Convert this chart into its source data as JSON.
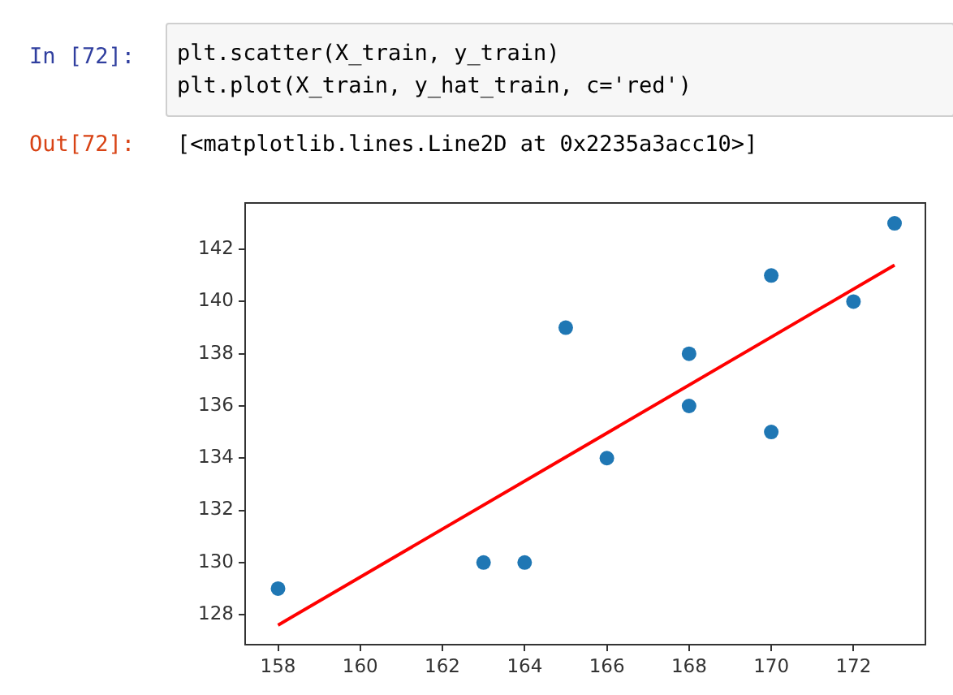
{
  "chart_data": {
    "type": "scatter",
    "annotations": [
      "In [72]:",
      "plt.scatter(X_train, y_train)",
      "plt.plot(X_train, y_hat_train, c='red')",
      "Out[72]:",
      "[<matplotlib.lines.Line2D at 0x2235a3acc10>]"
    ],
    "series": [
      {
        "marker": "circle",
        "color": "#1f77b4",
        "x": [
          158,
          163,
          164,
          165,
          166,
          168,
          168,
          170,
          170,
          172,
          173
        ],
        "values": [
          129,
          130,
          130,
          139,
          134,
          138,
          136,
          141,
          135,
          140,
          143
        ]
      },
      {
        "type": "line",
        "color": "#ff0000",
        "line_style": "solid",
        "x": [
          158,
          173
        ],
        "values": [
          127.6,
          141.4
        ]
      }
    ],
    "xlim": [
      157.2,
      173.75
    ],
    "xticks": [
      158,
      160,
      162,
      164,
      166,
      168,
      170,
      172
    ],
    "ylim": [
      126.85,
      143.78
    ],
    "yticks": [
      128,
      130,
      132,
      134,
      136,
      138,
      140,
      142
    ]
  }
}
